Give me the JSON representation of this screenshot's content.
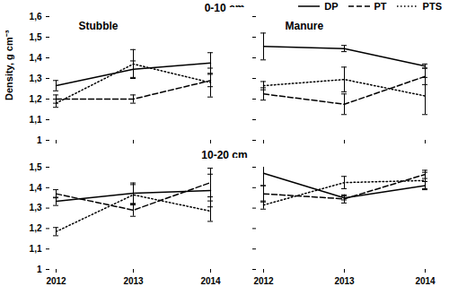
{
  "chart_data": [
    {
      "type": "line",
      "title": "Stubble",
      "subtitle": "0-10 cm",
      "ylabel": "Density, g cm⁻³",
      "categories": [
        "2012",
        "2013",
        "2014"
      ],
      "ylim": [
        1,
        1.6
      ],
      "yticks": [
        1,
        {
          "value": 1.1,
          "label": "1,1"
        },
        {
          "value": 1.2,
          "label": "1,2"
        },
        {
          "value": 1.3,
          "label": "1,3"
        },
        {
          "value": 1.4,
          "label": "1,4"
        },
        {
          "value": 1.5,
          "label": "1,5"
        },
        {
          "value": 1.6,
          "label": "1,6"
        }
      ],
      "grid": false,
      "tick_labels": "y",
      "series": [
        {
          "name": "DP",
          "color": "#000000",
          "line_style": "solid",
          "values": [
            1.265,
            1.345,
            1.375
          ],
          "errors": [
            0.025,
            0.04,
            0.05
          ]
        },
        {
          "name": "PT",
          "color": "#000000",
          "line_style": "dashed",
          "values": [
            1.2,
            1.2,
            1.29
          ],
          "errors": [
            0.02,
            0.02,
            0.03
          ]
        },
        {
          "name": "PTS",
          "color": "#000000",
          "line_style": "dotted",
          "values": [
            1.18,
            1.37,
            1.28
          ],
          "errors": [
            0.02,
            0.07,
            0.07
          ]
        }
      ]
    },
    {
      "type": "line",
      "title": "Manure",
      "categories": [
        "2012",
        "2013",
        "2014"
      ],
      "ylim": [
        1,
        1.6
      ],
      "yticks": [
        1,
        1.1,
        1.2,
        1.3,
        1.4,
        1.5,
        1.6
      ],
      "grid": false,
      "tick_labels": false,
      "series": [
        {
          "name": "DP",
          "color": "#000000",
          "line_style": "solid",
          "values": [
            1.455,
            1.445,
            1.36
          ],
          "errors": [
            0.065,
            0.015,
            0.01
          ]
        },
        {
          "name": "PT",
          "color": "#000000",
          "line_style": "dashed",
          "values": [
            1.225,
            1.175,
            1.31
          ],
          "errors": [
            0.03,
            0.05,
            0.04
          ]
        },
        {
          "name": "PTS",
          "color": "#000000",
          "line_style": "dotted",
          "values": [
            1.265,
            1.295,
            1.215
          ],
          "errors": [
            0.02,
            0.06,
            0.09
          ]
        }
      ]
    },
    {
      "type": "line",
      "subtitle": "10-20 cm",
      "categories": [
        "2012",
        "2013",
        "2014"
      ],
      "ylim": [
        1,
        1.5
      ],
      "yticks": [
        1,
        {
          "value": 1.1,
          "label": "1,1"
        },
        {
          "value": 1.2,
          "label": "1,2"
        },
        {
          "value": 1.3,
          "label": "1,3"
        },
        {
          "value": 1.4,
          "label": "1,4"
        },
        {
          "value": 1.5,
          "label": "1,5"
        }
      ],
      "grid": false,
      "tick_labels": true,
      "series": [
        {
          "name": "DP",
          "color": "#000000",
          "line_style": "solid",
          "values": [
            1.333,
            1.373,
            1.386
          ],
          "errors": [
            0.02,
            0.05,
            0.08
          ]
        },
        {
          "name": "PT",
          "color": "#000000",
          "line_style": "dashed",
          "values": [
            1.37,
            1.29,
            1.425
          ],
          "errors": [
            0.02,
            0.03,
            0.07
          ]
        },
        {
          "name": "PTS",
          "color": "#000000",
          "line_style": "dotted",
          "values": [
            1.185,
            1.365,
            1.285
          ],
          "errors": [
            0.02,
            0.05,
            0.05
          ]
        }
      ]
    },
    {
      "type": "line",
      "categories": [
        "2012",
        "2013",
        "2014"
      ],
      "ylim": [
        1,
        1.5
      ],
      "yticks": [
        1,
        1.1,
        1.2,
        1.3,
        1.4,
        1.5
      ],
      "grid": false,
      "tick_labels": "x",
      "series": [
        {
          "name": "DP",
          "color": "#000000",
          "line_style": "solid",
          "values": [
            1.47,
            1.35,
            1.41
          ],
          "errors": [
            0.06,
            0.01,
            0.02
          ]
        },
        {
          "name": "PT",
          "color": "#000000",
          "line_style": "dashed",
          "values": [
            1.37,
            1.345,
            1.465
          ],
          "errors": [
            0.04,
            0.02,
            0.02
          ]
        },
        {
          "name": "PTS",
          "color": "#000000",
          "line_style": "dotted",
          "values": [
            1.315,
            1.425,
            1.435
          ],
          "errors": [
            0.02,
            0.03,
            0.04
          ]
        }
      ]
    }
  ]
}
